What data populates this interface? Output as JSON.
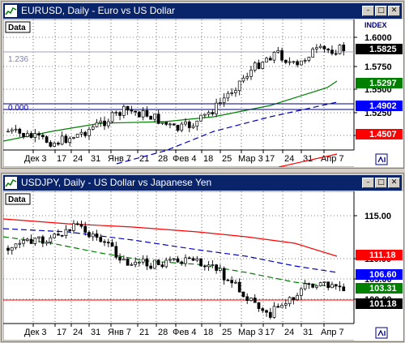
{
  "windows": [
    {
      "title": "EURUSD, Daily - Euro vs US Dollar",
      "price_tag": "Data",
      "index_label": "INDEX",
      "fib_label": "1.236",
      "fib2_label": "0.000",
      "price_labels": [
        "1.6000",
        "1.5750",
        "1.5500",
        "1.5250",
        "1.5000",
        "1.4750"
      ],
      "badges": [
        {
          "text": "1.5825",
          "color": "#000000"
        },
        {
          "text": "1.5297",
          "color": "#008000"
        },
        {
          "text": "1.4902",
          "color": "#0000ff"
        },
        {
          "text": "1.4507",
          "color": "#ff0000"
        }
      ],
      "x_labels": [
        "Дек 3",
        "17",
        "24",
        "31",
        "Янв 7",
        "21",
        "28",
        "Фев 4",
        "18",
        "25",
        "Мар 3",
        "17",
        "24",
        "31",
        "Апр 7"
      ],
      "colors": {
        "ma_fast": "#008000",
        "ma_mid": "#0000c0",
        "ma_slow": "#ff0000"
      }
    },
    {
      "title": "USDJPY, Daily - US Dollar vs Japanese Yen",
      "price_tag": "Data",
      "index_label": "",
      "price_labels": [
        "115.00",
        "110.00",
        "105.00",
        "100.00"
      ],
      "badges": [
        {
          "text": "111.18",
          "color": "#ff0000"
        },
        {
          "text": "106.60",
          "color": "#0000ff"
        },
        {
          "text": "103.31",
          "color": "#008000"
        },
        {
          "text": "101.18",
          "color": "#000000"
        }
      ],
      "x_labels": [
        "Дек 3",
        "17",
        "24",
        "31",
        "Янв 7",
        "21",
        "28",
        "Фев 4",
        "18",
        "25",
        "Мар 3",
        "17",
        "24",
        "31",
        "Апр 7"
      ],
      "colors": {
        "ma_fast": "#008000",
        "ma_mid": "#0000c0",
        "ma_slow": "#ff0000"
      }
    }
  ],
  "icons": {
    "window": "chart-window-icon",
    "minimize": "minimize-icon",
    "maximize": "maximize-icon",
    "close": "close-icon",
    "scroll": "scroll-to-end-icon"
  }
}
